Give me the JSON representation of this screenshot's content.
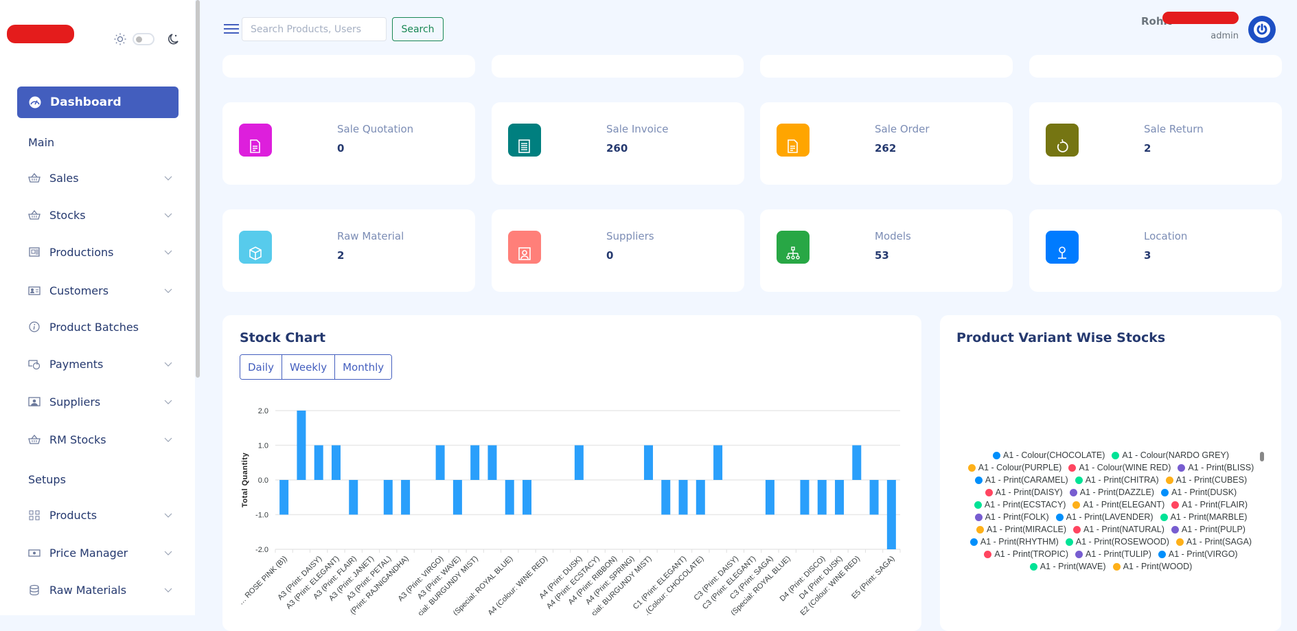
{
  "sidebar": {
    "dashboard": "Dashboard",
    "section_main": "Main",
    "section_setups": "Setups",
    "main_items": [
      {
        "label": "Sales",
        "icon": "basket-icon",
        "expandable": true
      },
      {
        "label": "Stocks",
        "icon": "basket-icon",
        "expandable": true
      },
      {
        "label": "Productions",
        "icon": "motherboard-icon",
        "expandable": true
      },
      {
        "label": "Customers",
        "icon": "person-card-icon",
        "expandable": true
      },
      {
        "label": "Product Batches",
        "icon": "info-circle-icon",
        "expandable": false
      },
      {
        "label": "Payments",
        "icon": "cash-coin-icon",
        "expandable": true
      },
      {
        "label": "Suppliers",
        "icon": "person-video-icon",
        "expandable": true
      },
      {
        "label": "RM Stocks",
        "icon": "basket-icon",
        "expandable": true
      }
    ],
    "setup_items": [
      {
        "label": "Products",
        "icon": "grid-icon",
        "expandable": true
      },
      {
        "label": "Price Manager",
        "icon": "cash-icon",
        "expandable": true
      },
      {
        "label": "Raw Materials",
        "icon": "database-icon",
        "expandable": true
      }
    ]
  },
  "header": {
    "search_placeholder": "Search Products, Users",
    "search_value": "",
    "search_button": "Search",
    "user_name": "Rohit",
    "user_role": "admin"
  },
  "stats": [
    {
      "label": "Sale Quotation",
      "value": "0",
      "color": "#dd1fdc",
      "icon": "file-text-icon"
    },
    {
      "label": "Sale Invoice",
      "value": "260",
      "color": "#007f7f",
      "icon": "receipt-icon"
    },
    {
      "label": "Sale Order",
      "value": "262",
      "color": "#ffa500",
      "icon": "file-text-icon"
    },
    {
      "label": "Sale Return",
      "value": "2",
      "color": "#757512",
      "icon": "return-arrow-icon"
    },
    {
      "label": "Raw Material",
      "value": "2",
      "color": "#57cbec",
      "icon": "box-icon"
    },
    {
      "label": "Suppliers",
      "value": "0",
      "color": "#ff7f79",
      "icon": "person-badge-icon"
    },
    {
      "label": "Models",
      "value": "53",
      "color": "#28a745",
      "icon": "diagram-icon"
    },
    {
      "label": "Location",
      "value": "3",
      "color": "#007bff",
      "icon": "geo-pin-icon"
    }
  ],
  "stock_chart": {
    "title": "Stock Chart",
    "periods": [
      "Daily",
      "Weekly",
      "Monthly"
    ]
  },
  "chart_data": {
    "type": "bar",
    "title": "",
    "ylabel": "Total Quantity",
    "xlabel": "",
    "ylim": [
      -2,
      2
    ],
    "yticks": [
      "2.0",
      "1.0",
      "0.0",
      "-1.0",
      "-2.0"
    ],
    "grid": true,
    "bar_color": "#2a9ffb",
    "categories": [
      "… ROSE PINK (B))",
      "",
      "A3 (Print: DAISY)",
      "A3 (Print: ELEGANT)",
      "A3 (Print: FLAIR)",
      "A3 (Print: JANET)",
      "A3 (Print: PETAL)",
      "…(Print: RAJNIGANDHA)",
      "",
      "A3 (Print: VIRGO)",
      "A3 (Print: WAVE)",
      "…cial: BURGUNDY MIST)",
      "",
      "…(Special: ROYAL BLUE)",
      "",
      "A4 (Colour: WINE RED)",
      "",
      "A4 (Print: DUSK)",
      "A4 (Print: ECSTACY)",
      "A4 (Print: RIBBON)",
      "A4 (Print: SPRING)",
      "…cial: BURGUNDY MIST)",
      "",
      "C1 (Print: ELEGANT)",
      "…(Colour: CHOCOLATE)",
      "",
      "C3 (Print: DAISY)",
      "C3 (Print: ELEGANT)",
      "C3 (Print: SAGA)",
      "…(Special: ROYAL BLUE)",
      "",
      "D4 (Print: DISCO)",
      "D4 (Print: DUSK)",
      "…E2 (Colour: WINE RED)",
      "",
      "E5 (Print: SAGA)"
    ],
    "values": [
      -1,
      2,
      1,
      1,
      -1,
      0,
      -1,
      -1,
      0,
      1,
      -1,
      1,
      1,
      -1,
      -1,
      0,
      0,
      1,
      0,
      0,
      0,
      1,
      -1,
      -1,
      -1,
      1,
      0,
      0,
      -1,
      0,
      -1,
      -1,
      -1,
      1,
      -1,
      -2
    ]
  },
  "variant_stocks": {
    "title": "Product Variant Wise Stocks",
    "legend": [
      {
        "label": "A1 - Colour(CHOCOLATE)",
        "color": "#008ffb"
      },
      {
        "label": "A1 - Colour(NARDO GREY)",
        "color": "#00e396"
      },
      {
        "label": "A1 - Colour(PURPLE)",
        "color": "#feb019"
      },
      {
        "label": "A1 - Colour(WINE RED)",
        "color": "#ff4560"
      },
      {
        "label": "A1 - Print(BLISS)",
        "color": "#775dd0"
      },
      {
        "label": "A1 - Print(CARAMEL)",
        "color": "#008ffb"
      },
      {
        "label": "A1 - Print(CHITRA)",
        "color": "#00e396"
      },
      {
        "label": "A1 - Print(CUBES)",
        "color": "#feb019"
      },
      {
        "label": "A1 - Print(DAISY)",
        "color": "#ff4560"
      },
      {
        "label": "A1 - Print(DAZZLE)",
        "color": "#775dd0"
      },
      {
        "label": "A1 - Print(DUSK)",
        "color": "#008ffb"
      },
      {
        "label": "A1 - Print(ECSTACY)",
        "color": "#00e396"
      },
      {
        "label": "A1 - Print(ELEGANT)",
        "color": "#feb019"
      },
      {
        "label": "A1 - Print(FLAIR)",
        "color": "#ff4560"
      },
      {
        "label": "A1 - Print(FOLK)",
        "color": "#775dd0"
      },
      {
        "label": "A1 - Print(LAVENDER)",
        "color": "#008ffb"
      },
      {
        "label": "A1 - Print(MARBLE)",
        "color": "#00e396"
      },
      {
        "label": "A1 - Print(MIRACLE)",
        "color": "#feb019"
      },
      {
        "label": "A1 - Print(NATURAL)",
        "color": "#ff4560"
      },
      {
        "label": "A1 - Print(PULP)",
        "color": "#775dd0"
      },
      {
        "label": "A1 - Print(RHYTHM)",
        "color": "#008ffb"
      },
      {
        "label": "A1 - Print(ROSEWOOD)",
        "color": "#00e396"
      },
      {
        "label": "A1 - Print(SAGA)",
        "color": "#feb019"
      },
      {
        "label": "A1 - Print(TROPIC)",
        "color": "#ff4560"
      },
      {
        "label": "A1 - Print(TULIP)",
        "color": "#775dd0"
      },
      {
        "label": "A1 - Print(VIRGO)",
        "color": "#008ffb"
      },
      {
        "label": "A1 - Print(WAVE)",
        "color": "#00e396"
      },
      {
        "label": "A1 - Print(WOOD)",
        "color": "#feb019"
      }
    ]
  },
  "colors": {
    "primary": "#435ebe",
    "search_green": "#198754",
    "avatar": "#1d4fc4"
  }
}
